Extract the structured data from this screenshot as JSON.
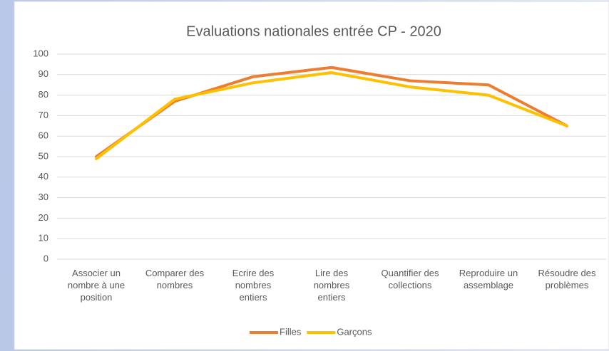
{
  "chart_data": {
    "type": "line",
    "title": "Evaluations nationales entrée CP - 2020",
    "categories": [
      "Associer un\nnombre à une\nposition",
      "Comparer des\nnombres",
      "Ecrire des\nnombres\nentiers",
      "Lire des\nnombres\nentiers",
      "Quantifier des\ncollections",
      "Reproduire un\nassemblage",
      "Résoudre des\nproblèmes"
    ],
    "series": [
      {
        "name": "Filles",
        "color": "#ED7D31",
        "values": [
          50,
          77,
          89,
          93.5,
          87,
          85,
          65
        ]
      },
      {
        "name": "Garçons",
        "color": "#FFC000",
        "values": [
          49,
          78,
          86,
          91,
          84,
          80,
          65
        ]
      }
    ],
    "ylim": [
      0,
      100
    ],
    "yticks": [
      0,
      10,
      20,
      30,
      40,
      50,
      60,
      70,
      80,
      90,
      100
    ],
    "grid": true,
    "legend": "bottom"
  }
}
